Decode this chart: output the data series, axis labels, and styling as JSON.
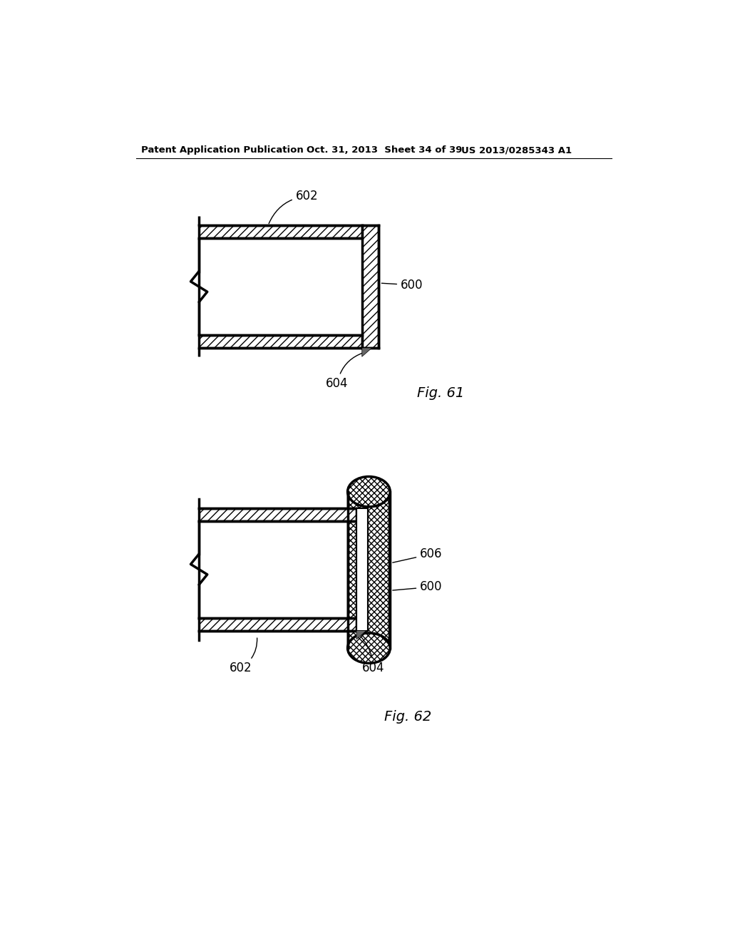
{
  "bg_color": "#ffffff",
  "line_color": "#000000",
  "header_left": "Patent Application Publication",
  "header_mid": "Oct. 31, 2013  Sheet 34 of 39",
  "header_right": "US 2013/0285343 A1",
  "fig61_label": "Fig. 61",
  "fig62_label": "Fig. 62",
  "label_600_1": "600",
  "label_602_1": "602",
  "label_604_1": "604",
  "label_600_2": "600",
  "label_602_2": "602",
  "label_604_2": "604",
  "label_606": "606"
}
